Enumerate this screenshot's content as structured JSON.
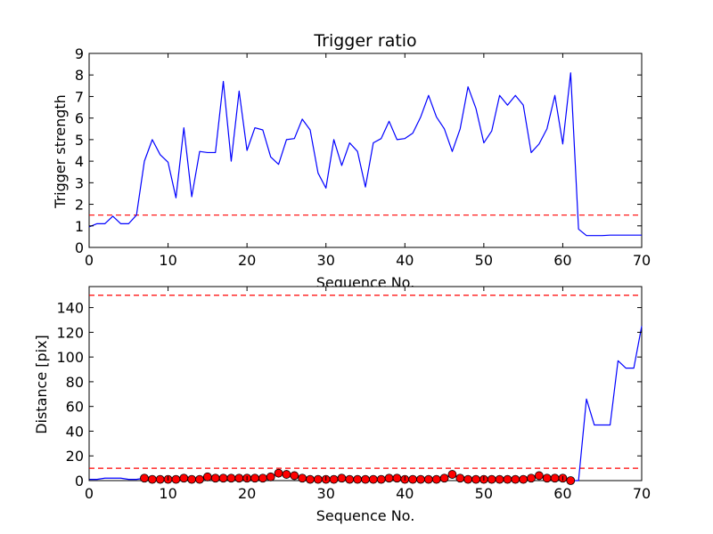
{
  "chart_data": [
    {
      "type": "line",
      "title": "Trigger ratio",
      "xlabel": "Sequence No.",
      "ylabel": "Trigger strength",
      "xlim": [
        0,
        70
      ],
      "ylim": [
        0,
        9
      ],
      "xticks": [
        0,
        10,
        20,
        30,
        40,
        50,
        60,
        70
      ],
      "yticks": [
        0,
        1,
        2,
        3,
        4,
        5,
        6,
        7,
        8,
        9
      ],
      "grid": false,
      "colors": {
        "line": "#0000ff",
        "threshold": "#ff0000"
      },
      "series": [
        {
          "x": [
            0,
            1,
            2,
            3,
            4,
            5,
            6,
            7,
            8,
            9,
            10,
            11,
            12,
            13,
            14,
            15,
            16,
            17,
            18,
            19,
            20,
            21,
            22,
            23,
            24,
            25,
            26,
            27,
            28,
            29,
            30,
            31,
            32,
            33,
            34,
            35,
            36,
            37,
            38,
            39,
            40,
            41,
            42,
            43,
            44,
            45,
            46,
            47,
            48,
            49,
            50,
            51,
            52,
            53,
            54,
            55,
            56,
            57,
            58,
            59,
            60,
            61,
            62,
            63,
            64,
            65,
            66,
            67,
            68,
            69,
            70
          ],
          "y": [
            0.95,
            1.1,
            1.1,
            1.45,
            1.1,
            1.1,
            1.5,
            4.0,
            5.0,
            4.3,
            3.95,
            2.3,
            5.55,
            2.35,
            4.45,
            4.4,
            4.4,
            7.7,
            4.0,
            7.25,
            4.5,
            5.55,
            5.45,
            4.2,
            3.85,
            5.0,
            5.05,
            5.95,
            5.45,
            3.45,
            2.75,
            5.0,
            3.8,
            4.85,
            4.45,
            2.8,
            4.85,
            5.05,
            5.85,
            5.0,
            5.05,
            5.3,
            6.05,
            7.05,
            6.05,
            5.5,
            4.45,
            5.5,
            7.45,
            6.45,
            4.85,
            5.4,
            7.05,
            6.6,
            7.05,
            6.6,
            4.4,
            4.8,
            5.5,
            7.05,
            4.8,
            8.1,
            0.85,
            0.55,
            0.55,
            0.55,
            0.57,
            0.57,
            0.57,
            0.57,
            0.57
          ]
        }
      ],
      "threshold": 1.5
    },
    {
      "type": "line",
      "xlabel": "Sequence No.",
      "ylabel": "Distance [pix]",
      "xlim": [
        0,
        70
      ],
      "ylim": [
        0,
        157
      ],
      "xticks": [
        0,
        10,
        20,
        30,
        40,
        50,
        60,
        70
      ],
      "yticks": [
        0,
        20,
        40,
        60,
        80,
        100,
        120,
        140
      ],
      "grid": false,
      "colors": {
        "line": "#0000ff",
        "markers": "#ff0000",
        "threshold": "#ff0000"
      },
      "series": [
        {
          "x": [
            0,
            1,
            2,
            3,
            4,
            5,
            6,
            7,
            8,
            9,
            10,
            11,
            12,
            13,
            14,
            15,
            16,
            17,
            18,
            19,
            20,
            21,
            22,
            23,
            24,
            25,
            26,
            27,
            28,
            29,
            30,
            31,
            32,
            33,
            34,
            35,
            36,
            37,
            38,
            39,
            40,
            41,
            42,
            43,
            44,
            45,
            46,
            47,
            48,
            49,
            50,
            51,
            52,
            53,
            54,
            55,
            56,
            57,
            58,
            59,
            60,
            61,
            62,
            63,
            64,
            65,
            66,
            67,
            68,
            69,
            70
          ],
          "y": [
            1,
            1,
            2,
            2,
            2,
            1,
            1,
            2,
            1,
            1,
            1,
            1,
            2,
            1,
            1,
            3,
            2,
            2,
            2,
            2,
            2,
            2,
            2,
            3,
            6,
            5,
            4,
            2,
            1,
            1,
            1,
            1,
            2,
            1,
            1,
            1,
            1,
            1,
            2,
            2,
            1,
            1,
            1,
            1,
            1,
            2,
            5,
            2,
            1,
            1,
            1,
            1,
            1,
            1,
            1,
            1,
            2,
            4,
            2,
            2,
            2,
            0,
            0,
            66,
            45,
            45,
            45,
            97,
            91,
            91,
            125
          ]
        },
        {
          "marker": "circle",
          "x": [
            7,
            8,
            9,
            10,
            11,
            12,
            13,
            14,
            15,
            16,
            17,
            18,
            19,
            20,
            21,
            22,
            23,
            24,
            25,
            26,
            27,
            28,
            29,
            30,
            31,
            32,
            33,
            34,
            35,
            36,
            37,
            38,
            39,
            40,
            41,
            42,
            43,
            44,
            45,
            46,
            47,
            48,
            49,
            50,
            51,
            52,
            53,
            54,
            55,
            56,
            57,
            58,
            59,
            60,
            61
          ],
          "y": [
            2,
            1,
            1,
            1,
            1,
            2,
            1,
            1,
            3,
            2,
            2,
            2,
            2,
            2,
            2,
            2,
            3,
            6,
            5,
            4,
            2,
            1,
            1,
            1,
            1,
            2,
            1,
            1,
            1,
            1,
            1,
            2,
            2,
            1,
            1,
            1,
            1,
            1,
            2,
            5,
            2,
            1,
            1,
            1,
            1,
            1,
            1,
            1,
            1,
            2,
            4,
            2,
            2,
            2,
            0
          ]
        }
      ],
      "thresholds": [
        10,
        150
      ]
    }
  ]
}
